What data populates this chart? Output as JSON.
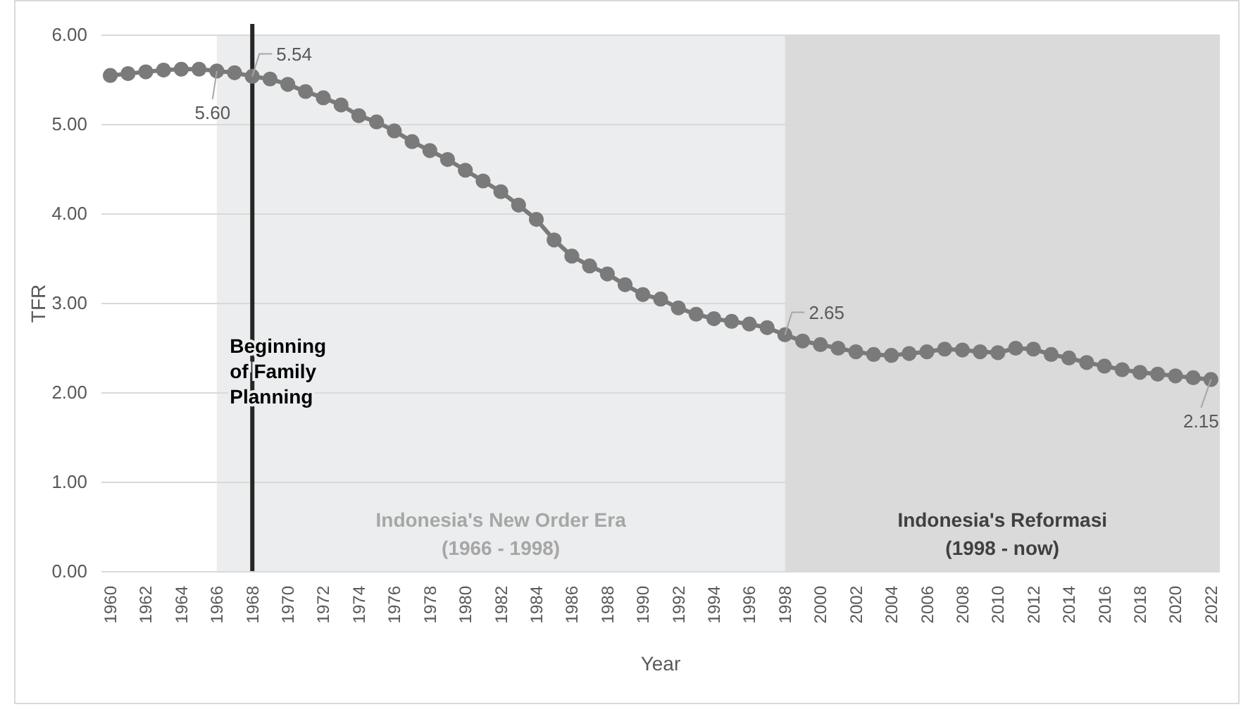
{
  "chart_data": {
    "type": "line",
    "xlabel": "Year",
    "ylabel": "TFR",
    "x": [
      1960,
      1961,
      1962,
      1963,
      1964,
      1965,
      1966,
      1967,
      1968,
      1969,
      1970,
      1971,
      1972,
      1973,
      1974,
      1975,
      1976,
      1977,
      1978,
      1979,
      1980,
      1981,
      1982,
      1983,
      1984,
      1985,
      1986,
      1987,
      1988,
      1989,
      1990,
      1991,
      1992,
      1993,
      1994,
      1995,
      1996,
      1997,
      1998,
      1999,
      2000,
      2001,
      2002,
      2003,
      2004,
      2005,
      2006,
      2007,
      2008,
      2009,
      2010,
      2011,
      2012,
      2013,
      2014,
      2015,
      2016,
      2017,
      2018,
      2019,
      2020,
      2021,
      2022
    ],
    "series": [
      {
        "color": "#7a7a7a",
        "values": [
          5.55,
          5.57,
          5.59,
          5.61,
          5.62,
          5.62,
          5.6,
          5.58,
          5.54,
          5.51,
          5.45,
          5.37,
          5.3,
          5.22,
          5.1,
          5.03,
          4.93,
          4.81,
          4.71,
          4.61,
          4.49,
          4.37,
          4.25,
          4.1,
          3.94,
          3.71,
          3.53,
          3.42,
          3.33,
          3.21,
          3.1,
          3.05,
          2.95,
          2.88,
          2.83,
          2.8,
          2.77,
          2.73,
          2.65,
          2.58,
          2.54,
          2.5,
          2.46,
          2.43,
          2.42,
          2.44,
          2.46,
          2.49,
          2.48,
          2.46,
          2.45,
          2.5,
          2.49,
          2.43,
          2.39,
          2.34,
          2.3,
          2.26,
          2.23,
          2.21,
          2.19,
          2.17,
          2.15
        ],
        "value_labels": [
          null,
          null,
          null,
          null,
          null,
          null,
          "5.60",
          null,
          "5.54",
          null,
          null,
          null,
          null,
          null,
          null,
          null,
          null,
          null,
          null,
          null,
          null,
          null,
          null,
          null,
          null,
          null,
          null,
          null,
          null,
          null,
          null,
          null,
          null,
          null,
          null,
          null,
          null,
          null,
          "2.65",
          null,
          null,
          null,
          null,
          null,
          null,
          null,
          null,
          null,
          null,
          null,
          null,
          null,
          null,
          null,
          null,
          null,
          null,
          null,
          null,
          null,
          null,
          null,
          "2.15"
        ]
      }
    ],
    "xlim": [
      1959.5,
      2022.5
    ],
    "xticks": [
      1960,
      1962,
      1964,
      1966,
      1968,
      1970,
      1972,
      1974,
      1976,
      1978,
      1980,
      1982,
      1984,
      1986,
      1988,
      1990,
      1992,
      1994,
      1996,
      1998,
      2000,
      2002,
      2004,
      2006,
      2008,
      2010,
      2012,
      2014,
      2016,
      2018,
      2020,
      2022
    ],
    "ylim": [
      0,
      6
    ],
    "yticks": [
      {
        "value": 0,
        "label": "0.00"
      },
      {
        "value": 1,
        "label": "1.00"
      },
      {
        "value": 2,
        "label": "2.00"
      },
      {
        "value": 3,
        "label": "3.00"
      },
      {
        "value": 4,
        "label": "4.00"
      },
      {
        "value": 5,
        "label": "5.00"
      },
      {
        "value": 6,
        "label": "6.00"
      }
    ],
    "grid": "y",
    "marker": "circle",
    "line_style": "solid",
    "bands": [
      {
        "axis": "x",
        "from": 1966,
        "to": 1998,
        "label": "Indonesia's New Order Era\n(1966 - 1998)",
        "color": "#ecedee"
      },
      {
        "axis": "x",
        "from": 1998,
        "to": 2022.5,
        "label": "Indonesia's Reformasi\n(1998 - now)",
        "color": "#dadada"
      }
    ],
    "ref_lines": [
      {
        "axis": "x",
        "value": 1968,
        "label": "Beginning\nof Family\nPlanning",
        "color": "#262626",
        "line_style": "solid"
      }
    ]
  }
}
